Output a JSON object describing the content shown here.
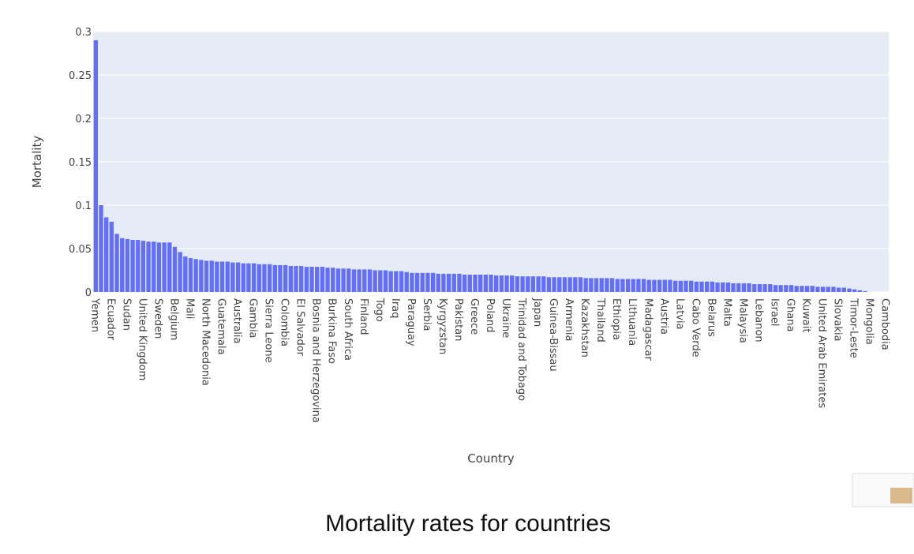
{
  "chart_data": {
    "type": "bar",
    "caption": "Mortality rates for countries",
    "x_label": "Country",
    "y_label": "Mortality",
    "color": "#636efa",
    "grid": true,
    "ylim": [
      0,
      0.3
    ],
    "yticks": [
      0,
      0.05,
      0.1,
      0.15,
      0.2,
      0.25,
      0.3
    ],
    "categories": [
      "Yemen",
      null,
      null,
      "Ecuador",
      null,
      null,
      "Sudan",
      null,
      null,
      "United Kingdom",
      null,
      null,
      "Sweden",
      null,
      null,
      "Belgium",
      null,
      null,
      "Mali",
      null,
      null,
      "North Macedonia",
      null,
      null,
      "Guatemala",
      null,
      null,
      "Australia",
      null,
      null,
      "Gambia",
      null,
      null,
      "Sierra Leone",
      null,
      null,
      "Colombia",
      null,
      null,
      "El Salvador",
      null,
      null,
      "Bosnia and Herzegovina",
      null,
      null,
      "Burkina Faso",
      null,
      null,
      "South Africa",
      null,
      null,
      "Finland",
      null,
      null,
      "Togo",
      null,
      null,
      "Iraq",
      null,
      null,
      "Paraguay",
      null,
      null,
      "Serbia",
      null,
      null,
      "Kyrgyzstan",
      null,
      null,
      "Pakistan",
      null,
      null,
      "Greece",
      null,
      null,
      "Poland",
      null,
      null,
      "Ukraine",
      null,
      null,
      "Trinidad and Tobago",
      null,
      null,
      "Japan",
      null,
      null,
      "Guinea-Bissau",
      null,
      null,
      "Armenia",
      null,
      null,
      "Kazakhstan",
      null,
      null,
      "Thailand",
      null,
      null,
      "Ethiopia",
      null,
      null,
      "Lithuania",
      null,
      null,
      "Madagascar",
      null,
      null,
      "Austria",
      null,
      null,
      "Latvia",
      null,
      null,
      "Cabo Verde",
      null,
      null,
      "Belarus",
      null,
      null,
      "Malta",
      null,
      null,
      "Malaysia",
      null,
      null,
      "Lebanon",
      null,
      null,
      "Israel",
      null,
      null,
      "Ghana",
      null,
      null,
      "Kuwait",
      null,
      null,
      "United Arab Emirates",
      null,
      null,
      "Slovakia",
      null,
      null,
      "Timor-Leste",
      null,
      null,
      "Mongolia",
      null,
      null,
      "Cambodia"
    ],
    "values": [
      0.29,
      0.1,
      0.086,
      0.081,
      0.067,
      0.062,
      0.061,
      0.06,
      0.06,
      0.059,
      0.058,
      0.058,
      0.057,
      0.057,
      0.057,
      0.052,
      0.046,
      0.041,
      0.039,
      0.038,
      0.037,
      0.036,
      0.036,
      0.035,
      0.035,
      0.035,
      0.034,
      0.034,
      0.033,
      0.033,
      0.033,
      0.032,
      0.032,
      0.032,
      0.031,
      0.031,
      0.031,
      0.03,
      0.03,
      0.03,
      0.029,
      0.029,
      0.029,
      0.029,
      0.028,
      0.028,
      0.027,
      0.027,
      0.027,
      0.026,
      0.026,
      0.026,
      0.026,
      0.025,
      0.025,
      0.025,
      0.024,
      0.024,
      0.024,
      0.023,
      0.022,
      0.022,
      0.022,
      0.022,
      0.022,
      0.021,
      0.021,
      0.021,
      0.021,
      0.021,
      0.02,
      0.02,
      0.02,
      0.02,
      0.02,
      0.02,
      0.019,
      0.019,
      0.019,
      0.019,
      0.018,
      0.018,
      0.018,
      0.018,
      0.018,
      0.018,
      0.017,
      0.017,
      0.017,
      0.017,
      0.017,
      0.017,
      0.017,
      0.016,
      0.016,
      0.016,
      0.016,
      0.016,
      0.016,
      0.015,
      0.015,
      0.015,
      0.015,
      0.015,
      0.015,
      0.014,
      0.014,
      0.014,
      0.014,
      0.014,
      0.013,
      0.013,
      0.013,
      0.013,
      0.012,
      0.012,
      0.012,
      0.012,
      0.011,
      0.011,
      0.011,
      0.01,
      0.01,
      0.01,
      0.01,
      0.009,
      0.009,
      0.009,
      0.009,
      0.008,
      0.008,
      0.008,
      0.008,
      0.007,
      0.007,
      0.007,
      0.007,
      0.006,
      0.006,
      0.006,
      0.006,
      0.005,
      0.005,
      0.004,
      0.003,
      0.002,
      0.001,
      0,
      0,
      0,
      0
    ]
  }
}
